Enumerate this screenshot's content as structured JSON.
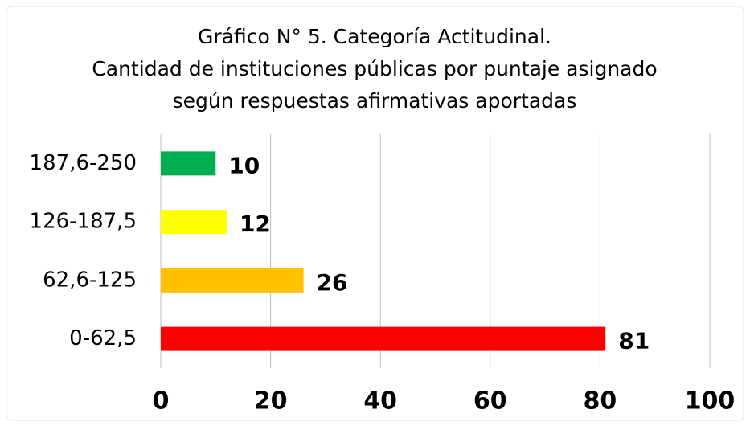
{
  "chart_data": {
    "type": "hbar",
    "title": [
      "Gráfico N° 5. Categoría Actitudinal.",
      "Cantidad de instituciones públicas por puntaje asignado",
      "según respuestas afirmativas aportadas"
    ],
    "categories": [
      "187,6-250",
      "126-187,5",
      "62,6-125",
      "0-62,5"
    ],
    "values": [
      10,
      12,
      26,
      81
    ],
    "colors": [
      "#00b050",
      "#ffff00",
      "#ffc000",
      "#ff0000"
    ],
    "xlim": [
      0,
      100
    ],
    "xticks": [
      0,
      20,
      40,
      60,
      80,
      100
    ],
    "grid": true
  }
}
